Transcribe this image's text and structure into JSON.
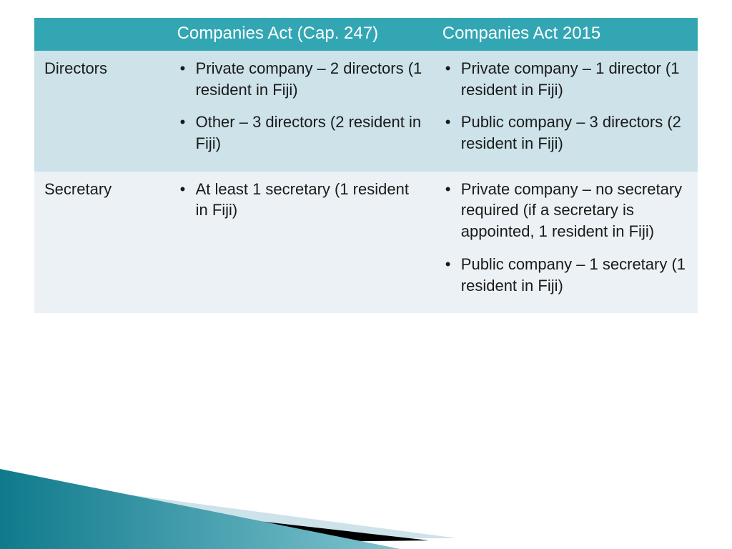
{
  "table": {
    "header_bg": "#33a6b4",
    "header_text_color": "#ffffff",
    "row_bg_alt1": "#cde2e9",
    "row_bg_alt2": "#ecf1f5",
    "text_color": "#1a1a1a",
    "font_family": "Trebuchet MS",
    "header_fontsize": 24,
    "cell_fontsize": 22,
    "columns": [
      {
        "label": "",
        "width_pct": 20
      },
      {
        "label": "Companies Act (Cap. 247)",
        "width_pct": 40
      },
      {
        "label": "Companies Act 2015",
        "width_pct": 40
      }
    ],
    "rows": [
      {
        "label": "Directors",
        "cells": [
          [
            "Private company – 2 directors (1 resident in Fiji)",
            "Other – 3 directors (2 resident in Fiji)"
          ],
          [
            "Private company – 1 director (1 resident in Fiji)",
            "Public company – 3 directors (2 resident in Fiji)"
          ]
        ]
      },
      {
        "label": "Secretary",
        "cells": [
          [
            "At least 1 secretary (1 resident in Fiji)"
          ],
          [
            "Private company – no secretary required (if a secretary is appointed, 1 resident in Fiji)",
            "Public company – 1 secretary (1 resident in Fiji)"
          ]
        ]
      }
    ]
  },
  "decor": {
    "wedge_gradient_from": "#0f7a8c",
    "wedge_gradient_to": "#7fc4cf",
    "wedge_light": "#cde2e9",
    "wedge_dark": "#000000"
  }
}
